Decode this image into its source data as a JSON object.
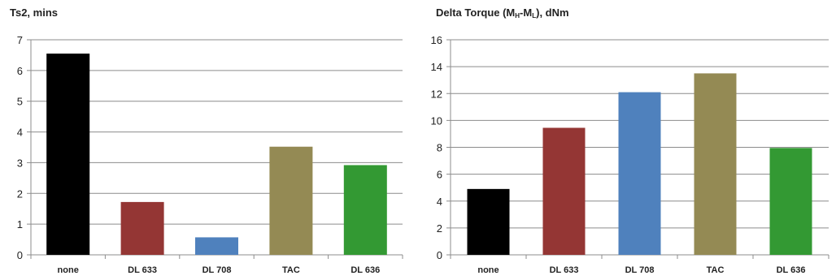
{
  "chart_data": [
    {
      "type": "bar",
      "title": "Ts2, mins",
      "categories": [
        "none",
        "DL 633",
        "DL 708",
        "TAC",
        "DL 636"
      ],
      "values": [
        6.55,
        1.72,
        0.57,
        3.52,
        2.92
      ],
      "ylim": [
        0,
        7
      ],
      "yticks": [
        0,
        1,
        2,
        3,
        4,
        5,
        6,
        7
      ],
      "colors": [
        "#000000",
        "#943634",
        "#4f81bd",
        "#948a54",
        "#339933"
      ],
      "grid": true,
      "legend": "none"
    },
    {
      "type": "bar",
      "title": "Delta Torque (MH-ML), dNm",
      "title_parts": {
        "main": "Delta Torque (M",
        "sub1": "H",
        "mid": "-M",
        "sub2": "L",
        "tail": "), dNm"
      },
      "categories": [
        "none",
        "DL 633",
        "DL 708",
        "TAC",
        "DL 636"
      ],
      "values": [
        4.9,
        9.45,
        12.1,
        13.5,
        7.95
      ],
      "ylim": [
        0,
        16
      ],
      "yticks": [
        0,
        2,
        4,
        6,
        8,
        10,
        12,
        14,
        16
      ],
      "colors": [
        "#000000",
        "#943634",
        "#4f81bd",
        "#948a54",
        "#339933"
      ],
      "grid": true,
      "legend": "none"
    }
  ]
}
